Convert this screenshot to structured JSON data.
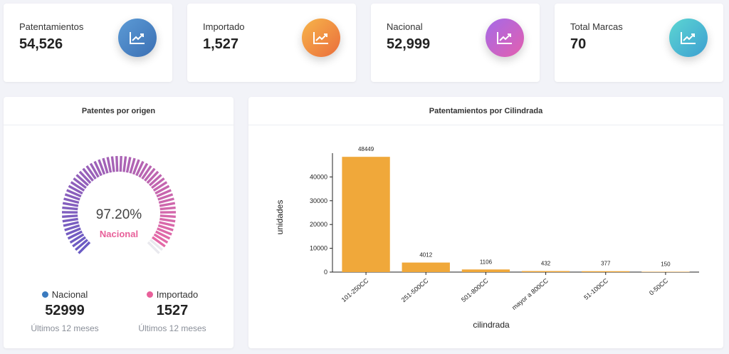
{
  "stats": [
    {
      "label": "Patentamientos",
      "value": "54,526",
      "icon": "trend-chart-icon",
      "gradient": [
        "#5c9bd6",
        "#3b6fb3"
      ]
    },
    {
      "label": "Importado",
      "value": "1,527",
      "icon": "trend-chart-icon",
      "gradient": [
        "#f7b54a",
        "#ea6d3c"
      ]
    },
    {
      "label": "Nacional",
      "value": "52,999",
      "icon": "trend-chart-icon",
      "gradient": [
        "#a46ae8",
        "#e45fae"
      ]
    },
    {
      "label": "Total Marcas",
      "value": "70",
      "icon": "trend-chart-icon",
      "gradient": [
        "#5cd6d2",
        "#3d9fd1"
      ]
    }
  ],
  "origin_panel": {
    "title": "Patentes por origen",
    "percent": "97.20%",
    "percent_label": "Nacional",
    "gauge_fraction": 0.972,
    "colors": {
      "start": "#6a5bc4",
      "end": "#e86aa6",
      "rest": "#e9e9ee"
    },
    "legend": [
      {
        "label": "Nacional",
        "value": "52999",
        "sub": "Últimos 12 meses",
        "color": "#3b7bbf"
      },
      {
        "label": "Importado",
        "value": "1527",
        "sub": "Últimos 12 meses",
        "color": "#e8609a"
      }
    ]
  },
  "cilindrada_panel": {
    "title": "Patentamientos por Cilindrada"
  },
  "chart_data": {
    "type": "bar",
    "categories": [
      "101-250CC",
      "251-500CC",
      "501-800CC",
      "mayor a 800CC",
      "51-100CC",
      "0-50CC"
    ],
    "values": [
      48449,
      4012,
      1106,
      432,
      377,
      150
    ],
    "ylabel": "unidades",
    "xlabel": "cilindrada",
    "yticks": [
      0,
      10000,
      20000,
      30000,
      40000
    ],
    "ylim": [
      0,
      50000
    ],
    "bar_color": "#f0a83a"
  }
}
